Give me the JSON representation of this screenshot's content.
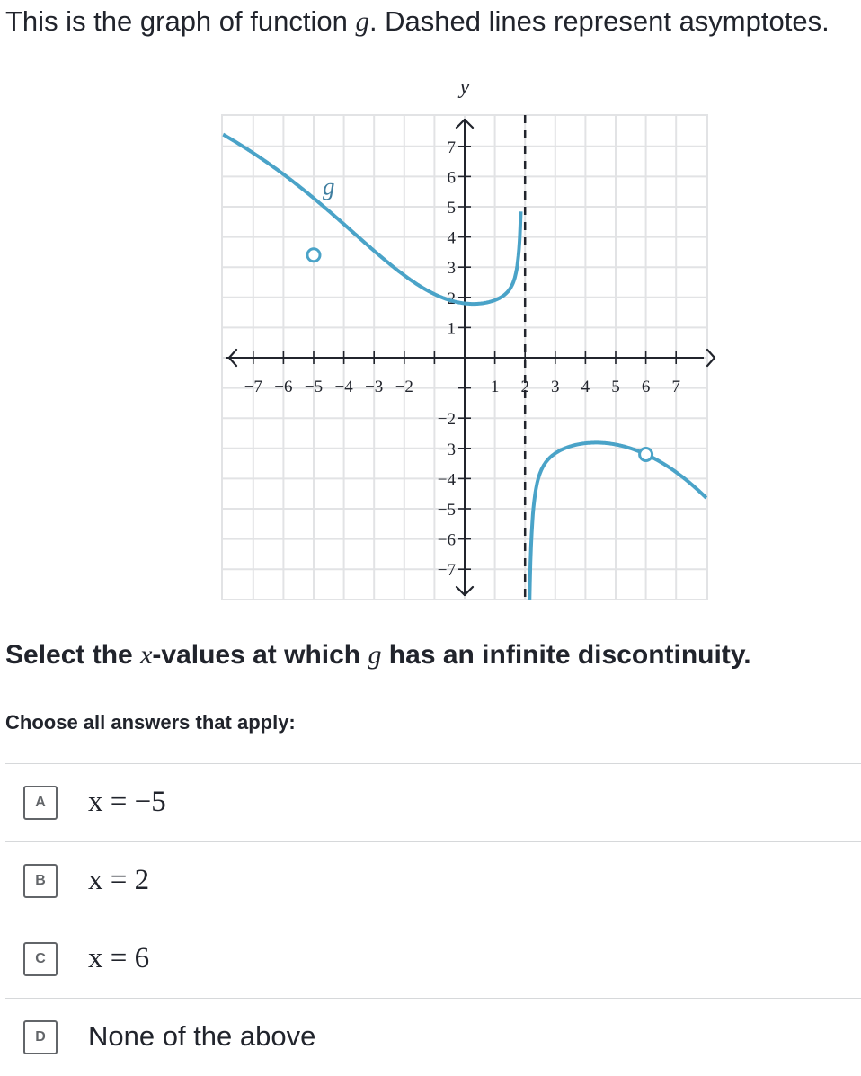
{
  "intro": {
    "text_before": "This is the graph of function ",
    "function_name": "g",
    "text_after": ". Dashed lines represent asymptotes."
  },
  "graph": {
    "function_label": "g",
    "x_axis_label": "x",
    "y_axis_label": "y",
    "x_ticks_negative": [
      "−7",
      "−6",
      "−5",
      "−4",
      "−3",
      "−2"
    ],
    "x_ticks_positive": [
      "1",
      "2",
      "3",
      "4",
      "5",
      "6",
      "7"
    ],
    "y_ticks_positive": [
      "1",
      "2",
      "3",
      "4",
      "5",
      "6",
      "7"
    ],
    "y_ticks_negative": [
      "−2",
      "−3",
      "−4",
      "−5",
      "−6",
      "−7"
    ],
    "x_range": [
      -8,
      8
    ],
    "y_range": [
      -8,
      8
    ],
    "vertical_asymptote_x": 2,
    "holes": [
      {
        "x": -5,
        "y": 3.4
      },
      {
        "x": 6,
        "y": -3.2
      }
    ],
    "curve_color": "#4aa3c8",
    "grid_color": "#e2e3e5"
  },
  "question": {
    "text_before": "Select the ",
    "variable": "x",
    "text_middle": "-values at which ",
    "function_name": "g",
    "text_after": " has an infinite discontinuity."
  },
  "instruction": "Choose all answers that apply:",
  "choices": [
    {
      "letter": "A",
      "text": "x = −5"
    },
    {
      "letter": "B",
      "text": "x = 2"
    },
    {
      "letter": "C",
      "text": "x = 6"
    },
    {
      "letter": "D",
      "text": "None of the above"
    }
  ]
}
